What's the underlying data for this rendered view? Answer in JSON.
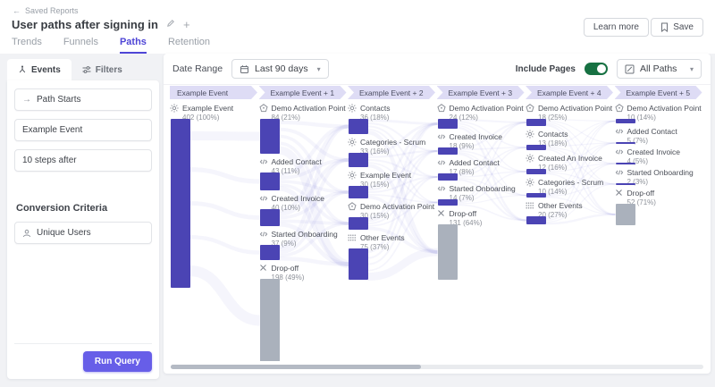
{
  "header": {
    "back_label": "Saved Reports",
    "title": "User paths after signing in",
    "tabs": [
      {
        "label": "Trends",
        "active": false
      },
      {
        "label": "Funnels",
        "active": false
      },
      {
        "label": "Paths",
        "active": true
      },
      {
        "label": "Retention",
        "active": false
      }
    ],
    "learn_more_label": "Learn more",
    "save_label": "Save"
  },
  "sidebar": {
    "tabs": [
      {
        "label": "Events",
        "active": true
      },
      {
        "label": "Filters",
        "active": false
      }
    ],
    "path_starts_label": "Path Starts",
    "start_event_label": "Example Event",
    "steps_label": "10 steps after",
    "conversion_heading": "Conversion Criteria",
    "conversion_value": "Unique Users",
    "run_query_label": "Run Query"
  },
  "toolbar": {
    "date_range_label": "Date Range",
    "date_range_value": "Last 90 days",
    "include_pages_label": "Include Pages",
    "include_pages_on": true,
    "paths_filter_value": "All Paths"
  },
  "sankey": {
    "type": "sankey",
    "columns": [
      {
        "header": "Example Event",
        "nodes": [
          {
            "icon": "custom-event",
            "label": "Example Event",
            "count": 402,
            "count_text": "402 (100%)",
            "kind": "event"
          }
        ]
      },
      {
        "header": "Example Event + 1",
        "nodes": [
          {
            "icon": "web",
            "label": "Demo Activation Point",
            "count": 84,
            "count_text": "84 (21%)",
            "kind": "event"
          },
          {
            "icon": "code",
            "label": "Added Contact",
            "count": 43,
            "count_text": "43 (11%)",
            "kind": "event"
          },
          {
            "icon": "code",
            "label": "Created Invoice",
            "count": 40,
            "count_text": "40 (10%)",
            "kind": "event"
          },
          {
            "icon": "code",
            "label": "Started Onboarding",
            "count": 37,
            "count_text": "37 (9%)",
            "kind": "event"
          },
          {
            "icon": "dropoff",
            "label": "Drop-off",
            "count": 198,
            "count_text": "198 (49%)",
            "kind": "dropoff"
          }
        ]
      },
      {
        "header": "Example Event + 2",
        "nodes": [
          {
            "icon": "custom-event",
            "label": "Contacts",
            "count": 36,
            "count_text": "36 (18%)",
            "kind": "event"
          },
          {
            "icon": "custom-event",
            "label": "Categories - Scrum",
            "count": 33,
            "count_text": "33 (16%)",
            "kind": "event"
          },
          {
            "icon": "custom-event",
            "label": "Example Event",
            "count": 30,
            "count_text": "30 (15%)",
            "kind": "event"
          },
          {
            "icon": "web",
            "label": "Demo Activation Point",
            "count": 30,
            "count_text": "30 (15%)",
            "kind": "event"
          },
          {
            "icon": "other",
            "label": "Other Events",
            "count": 75,
            "count_text": "75 (37%)",
            "kind": "event"
          }
        ]
      },
      {
        "header": "Example Event + 3",
        "nodes": [
          {
            "icon": "web",
            "label": "Demo Activation Point",
            "count": 24,
            "count_text": "24 (12%)",
            "kind": "event"
          },
          {
            "icon": "code",
            "label": "Created Invoice",
            "count": 18,
            "count_text": "18 (9%)",
            "kind": "event"
          },
          {
            "icon": "code",
            "label": "Added Contact",
            "count": 17,
            "count_text": "17 (8%)",
            "kind": "event"
          },
          {
            "icon": "code",
            "label": "Started Onboarding",
            "count": 14,
            "count_text": "14 (7%)",
            "kind": "event"
          },
          {
            "icon": "dropoff",
            "label": "Drop-off",
            "count": 131,
            "count_text": "131 (64%)",
            "kind": "dropoff"
          }
        ]
      },
      {
        "header": "Example Event + 4",
        "nodes": [
          {
            "icon": "web",
            "label": "Demo Activation Point",
            "count": 18,
            "count_text": "18 (25%)",
            "kind": "event"
          },
          {
            "icon": "custom-event",
            "label": "Contacts",
            "count": 13,
            "count_text": "13 (18%)",
            "kind": "event"
          },
          {
            "icon": "custom-event",
            "label": "Created An Invoice",
            "count": 12,
            "count_text": "12 (16%)",
            "kind": "event"
          },
          {
            "icon": "custom-event",
            "label": "Categories - Scrum",
            "count": 10,
            "count_text": "10 (14%)",
            "kind": "event"
          },
          {
            "icon": "other",
            "label": "Other Events",
            "count": 20,
            "count_text": "20 (27%)",
            "kind": "event"
          }
        ]
      },
      {
        "header": "Example Event + 5",
        "nodes": [
          {
            "icon": "web",
            "label": "Demo Activation Point",
            "count": 10,
            "count_text": "10 (14%)",
            "kind": "event"
          },
          {
            "icon": "code",
            "label": "Added Contact",
            "count": 5,
            "count_text": "5 (7%)",
            "kind": "event"
          },
          {
            "icon": "code",
            "label": "Created Invoice",
            "count": 4,
            "count_text": "4 (5%)",
            "kind": "event"
          },
          {
            "icon": "code",
            "label": "Started Onboarding",
            "count": 2,
            "count_text": "2 (3%)",
            "kind": "event"
          },
          {
            "icon": "dropoff",
            "label": "Drop-off",
            "count": 52,
            "count_text": "52 (71%)",
            "kind": "dropoff"
          }
        ]
      }
    ]
  },
  "colors": {
    "accent_bar": "#4b44b4",
    "dropoff_bar": "#aab1bc",
    "band": "#dedcf5",
    "flow": "#6b62cf",
    "active_tab": "#4f46d6",
    "toggle_on": "#177142",
    "run_query": "#675ee8"
  }
}
